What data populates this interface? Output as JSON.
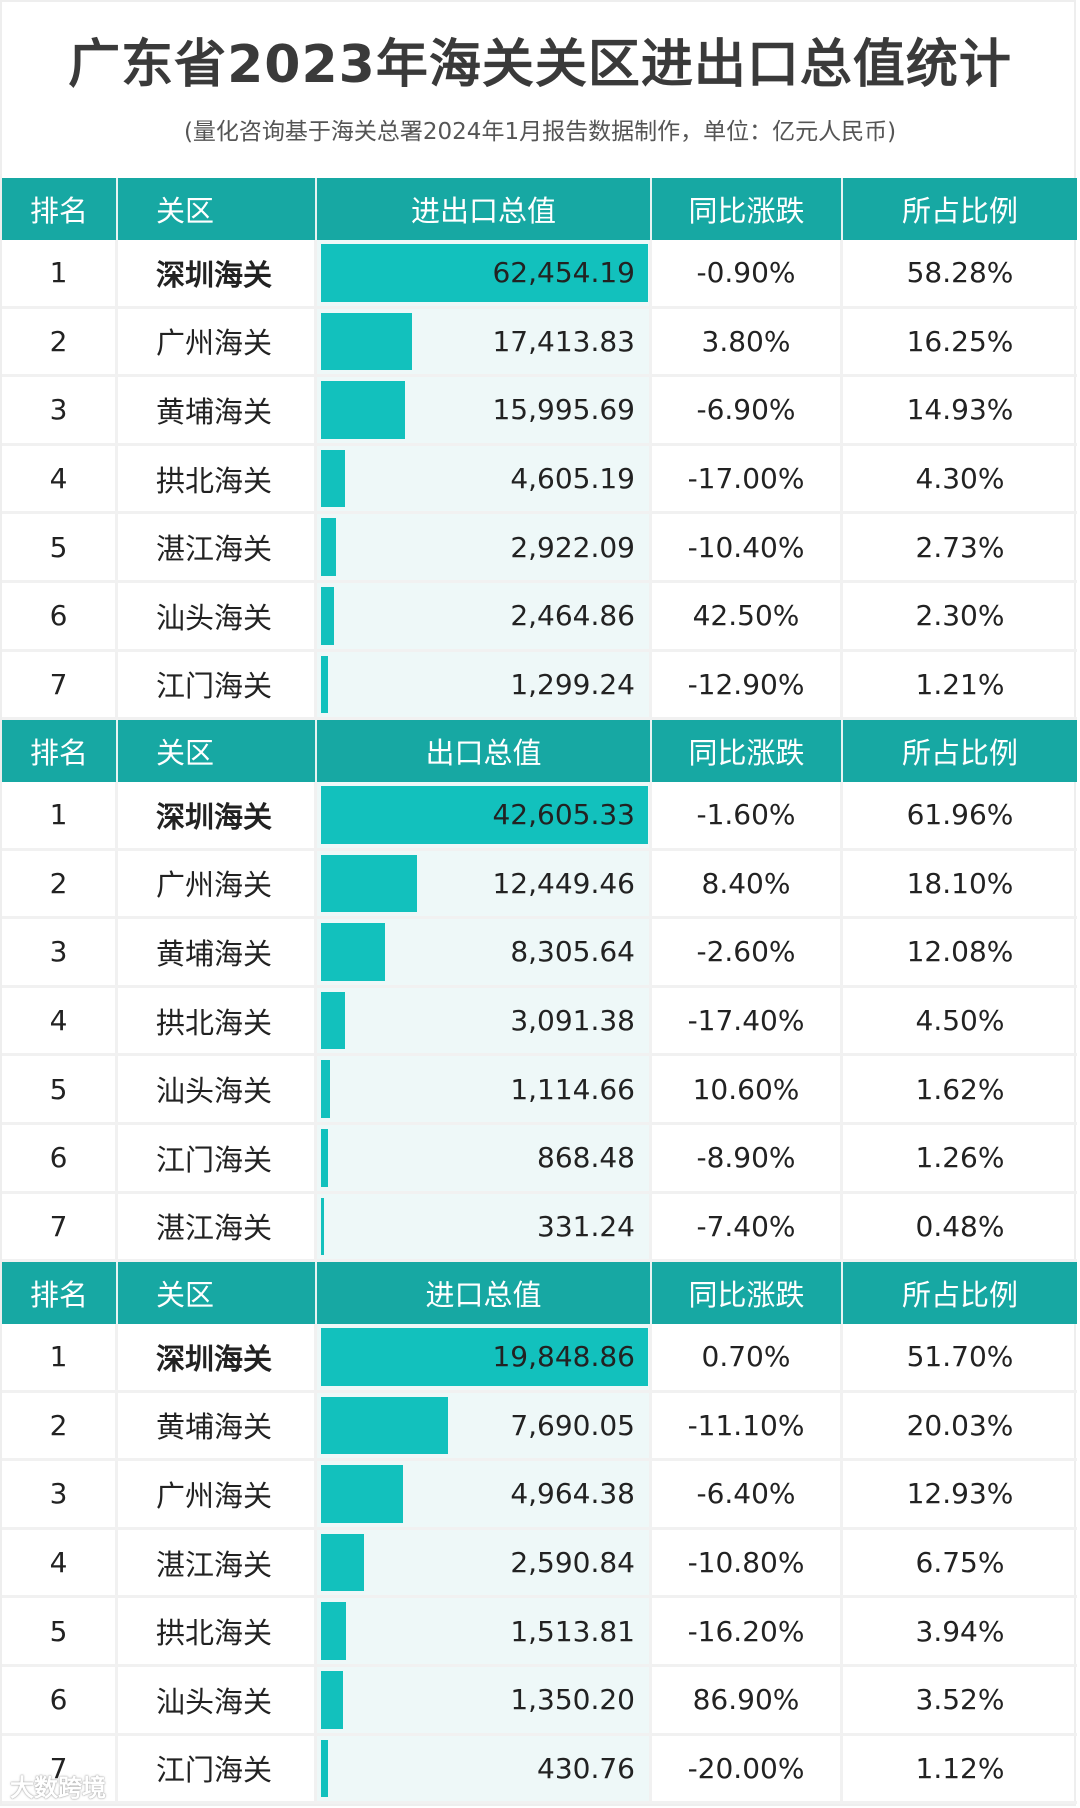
{
  "title": "广东省2023年海关关区进出口总值统计",
  "subtitle": "(量化咨询基于海关总署2024年1月报告数据制作，单位：亿元人民币)",
  "colors": {
    "header": "#17a8a3",
    "bar": "#12c1bd",
    "value_bg": "#eef8f8"
  },
  "watermark": "大数跨境",
  "tables": [
    {
      "headers": [
        "排名",
        "关区",
        "进出口总值",
        "同比涨跌",
        "所占比例"
      ],
      "rows": [
        {
          "rank": "1",
          "name": "深圳海关",
          "value": "62,454.19",
          "yoy": "-0.90%",
          "share": "58.28%"
        },
        {
          "rank": "2",
          "name": "广州海关",
          "value": "17,413.83",
          "yoy": "3.80%",
          "share": "16.25%"
        },
        {
          "rank": "3",
          "name": "黄埔海关",
          "value": "15,995.69",
          "yoy": "-6.90%",
          "share": "14.93%"
        },
        {
          "rank": "4",
          "name": "拱北海关",
          "value": "4,605.19",
          "yoy": "-17.00%",
          "share": "4.30%"
        },
        {
          "rank": "5",
          "name": "湛江海关",
          "value": "2,922.09",
          "yoy": "-10.40%",
          "share": "2.73%"
        },
        {
          "rank": "6",
          "name": "汕头海关",
          "value": "2,464.86",
          "yoy": "42.50%",
          "share": "2.30%"
        },
        {
          "rank": "7",
          "name": "江门海关",
          "value": "1,299.24",
          "yoy": "-12.90%",
          "share": "1.21%"
        }
      ]
    },
    {
      "headers": [
        "排名",
        "关区",
        "出口总值",
        "同比涨跌",
        "所占比例"
      ],
      "rows": [
        {
          "rank": "1",
          "name": "深圳海关",
          "value": "42,605.33",
          "yoy": "-1.60%",
          "share": "61.96%"
        },
        {
          "rank": "2",
          "name": "广州海关",
          "value": "12,449.46",
          "yoy": "8.40%",
          "share": "18.10%"
        },
        {
          "rank": "3",
          "name": "黄埔海关",
          "value": "8,305.64",
          "yoy": "-2.60%",
          "share": "12.08%"
        },
        {
          "rank": "4",
          "name": "拱北海关",
          "value": "3,091.38",
          "yoy": "-17.40%",
          "share": "4.50%"
        },
        {
          "rank": "5",
          "name": "汕头海关",
          "value": "1,114.66",
          "yoy": "10.60%",
          "share": "1.62%"
        },
        {
          "rank": "6",
          "name": "江门海关",
          "value": "868.48",
          "yoy": "-8.90%",
          "share": "1.26%"
        },
        {
          "rank": "7",
          "name": "湛江海关",
          "value": "331.24",
          "yoy": "-7.40%",
          "share": "0.48%"
        }
      ]
    },
    {
      "headers": [
        "排名",
        "关区",
        "进口总值",
        "同比涨跌",
        "所占比例"
      ],
      "rows": [
        {
          "rank": "1",
          "name": "深圳海关",
          "value": "19,848.86",
          "yoy": "0.70%",
          "share": "51.70%"
        },
        {
          "rank": "2",
          "name": "黄埔海关",
          "value": "7,690.05",
          "yoy": "-11.10%",
          "share": "20.03%"
        },
        {
          "rank": "3",
          "name": "广州海关",
          "value": "4,964.38",
          "yoy": "-6.40%",
          "share": "12.93%"
        },
        {
          "rank": "4",
          "name": "湛江海关",
          "value": "2,590.84",
          "yoy": "-10.80%",
          "share": "6.75%"
        },
        {
          "rank": "5",
          "name": "拱北海关",
          "value": "1,513.81",
          "yoy": "-16.20%",
          "share": "3.94%"
        },
        {
          "rank": "6",
          "name": "汕头海关",
          "value": "1,350.20",
          "yoy": "86.90%",
          "share": "3.52%"
        },
        {
          "rank": "7",
          "name": "江门海关",
          "value": "430.76",
          "yoy": "-20.00%",
          "share": "1.12%"
        }
      ]
    }
  ],
  "chart_data": [
    {
      "type": "table",
      "title": "广东省2023年海关关区进出口总值统计 - 进出口总值",
      "columns": [
        "排名",
        "关区",
        "进出口总值",
        "同比涨跌",
        "所占比例"
      ],
      "categories": [
        "深圳海关",
        "广州海关",
        "黄埔海关",
        "拱北海关",
        "湛江海关",
        "汕头海关",
        "江门海关"
      ],
      "values": [
        62454.19,
        17413.83,
        15995.69,
        4605.19,
        2922.09,
        2464.86,
        1299.24
      ],
      "yoy_pct": [
        -0.9,
        3.8,
        -6.9,
        -17.0,
        -10.4,
        42.5,
        -12.9
      ],
      "share_pct": [
        58.28,
        16.25,
        14.93,
        4.3,
        2.73,
        2.3,
        1.21
      ],
      "unit": "亿元人民币"
    },
    {
      "type": "table",
      "title": "广东省2023年海关关区进出口总值统计 - 出口总值",
      "columns": [
        "排名",
        "关区",
        "出口总值",
        "同比涨跌",
        "所占比例"
      ],
      "categories": [
        "深圳海关",
        "广州海关",
        "黄埔海关",
        "拱北海关",
        "汕头海关",
        "江门海关",
        "湛江海关"
      ],
      "values": [
        42605.33,
        12449.46,
        8305.64,
        3091.38,
        1114.66,
        868.48,
        331.24
      ],
      "yoy_pct": [
        -1.6,
        8.4,
        -2.6,
        -17.4,
        10.6,
        -8.9,
        -7.4
      ],
      "share_pct": [
        61.96,
        18.1,
        12.08,
        4.5,
        1.62,
        1.26,
        0.48
      ],
      "unit": "亿元人民币"
    },
    {
      "type": "table",
      "title": "广东省2023年海关关区进出口总值统计 - 进口总值",
      "columns": [
        "排名",
        "关区",
        "进口总值",
        "同比涨跌",
        "所占比例"
      ],
      "categories": [
        "深圳海关",
        "黄埔海关",
        "广州海关",
        "湛江海关",
        "拱北海关",
        "汕头海关",
        "江门海关"
      ],
      "values": [
        19848.86,
        7690.05,
        4964.38,
        2590.84,
        1513.81,
        1350.2,
        430.76
      ],
      "yoy_pct": [
        0.7,
        -11.1,
        -6.4,
        -10.8,
        -16.2,
        86.9,
        -20.0
      ],
      "share_pct": [
        51.7,
        20.03,
        12.93,
        6.75,
        3.94,
        3.52,
        1.12
      ],
      "unit": "亿元人民币"
    }
  ]
}
